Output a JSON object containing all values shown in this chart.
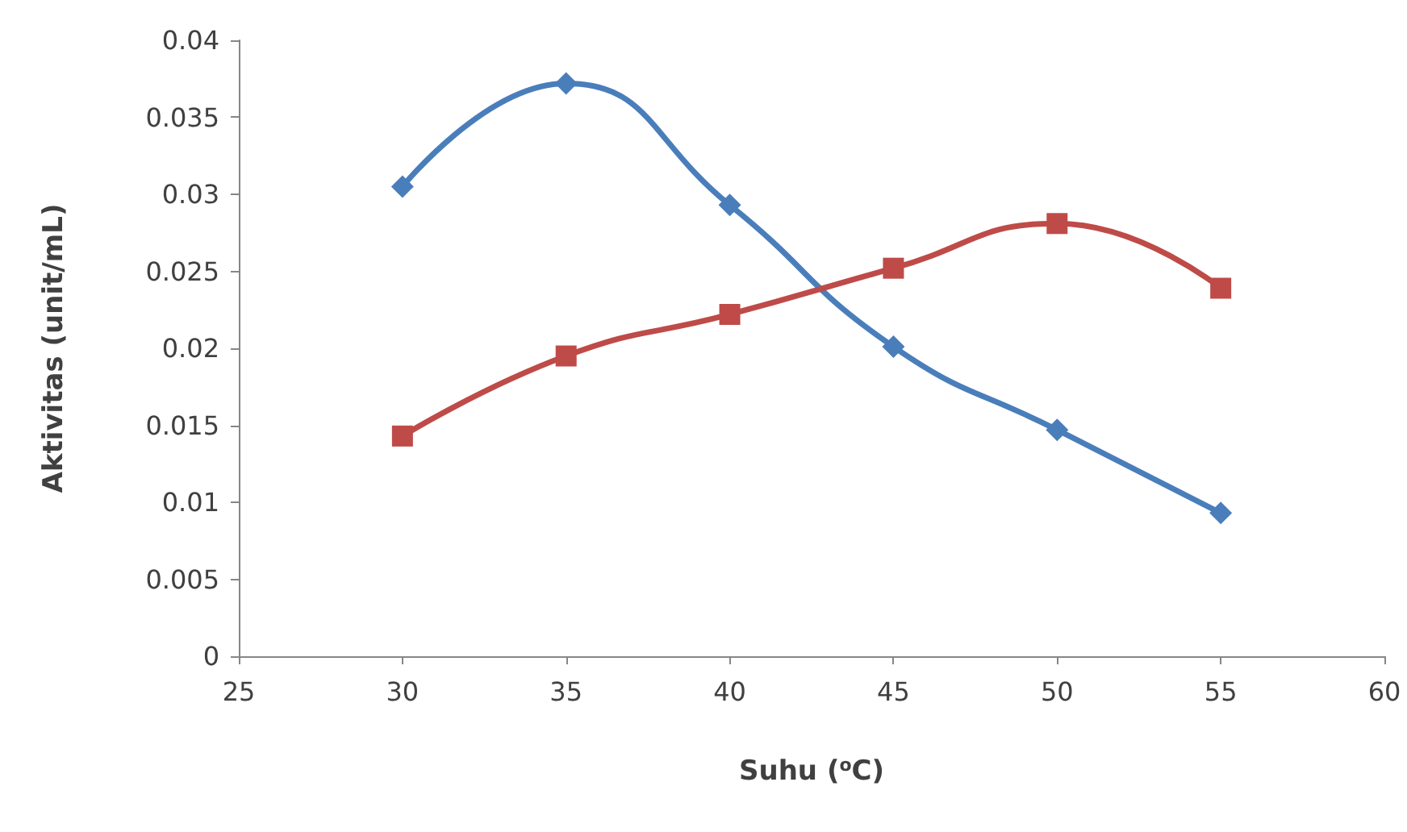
{
  "chart_data": {
    "type": "line",
    "xlabel": "Suhu ($^{o}$C)",
    "ylabel": "Aktivitas (unit/mL)",
    "x": [
      30,
      35,
      40,
      45,
      50,
      55
    ],
    "series": [
      {
        "color": "#4a7ebb",
        "marker": "diamond",
        "values": [
          0.0305,
          0.0372,
          0.0293,
          0.0201,
          0.0147,
          0.0093
        ]
      },
      {
        "color": "#be4b48",
        "marker": "square",
        "values": [
          0.0143,
          0.0195,
          0.0222,
          0.0252,
          0.0281,
          0.0239
        ]
      }
    ],
    "xlim": [
      25,
      60
    ],
    "xticks": [
      25,
      30,
      35,
      40,
      45,
      50,
      55,
      60
    ],
    "ylim": [
      0,
      0.04
    ],
    "yticks": [
      0,
      0.005,
      0.01,
      0.015,
      0.02,
      0.025,
      0.03,
      0.035,
      0.04
    ],
    "grid": false
  }
}
